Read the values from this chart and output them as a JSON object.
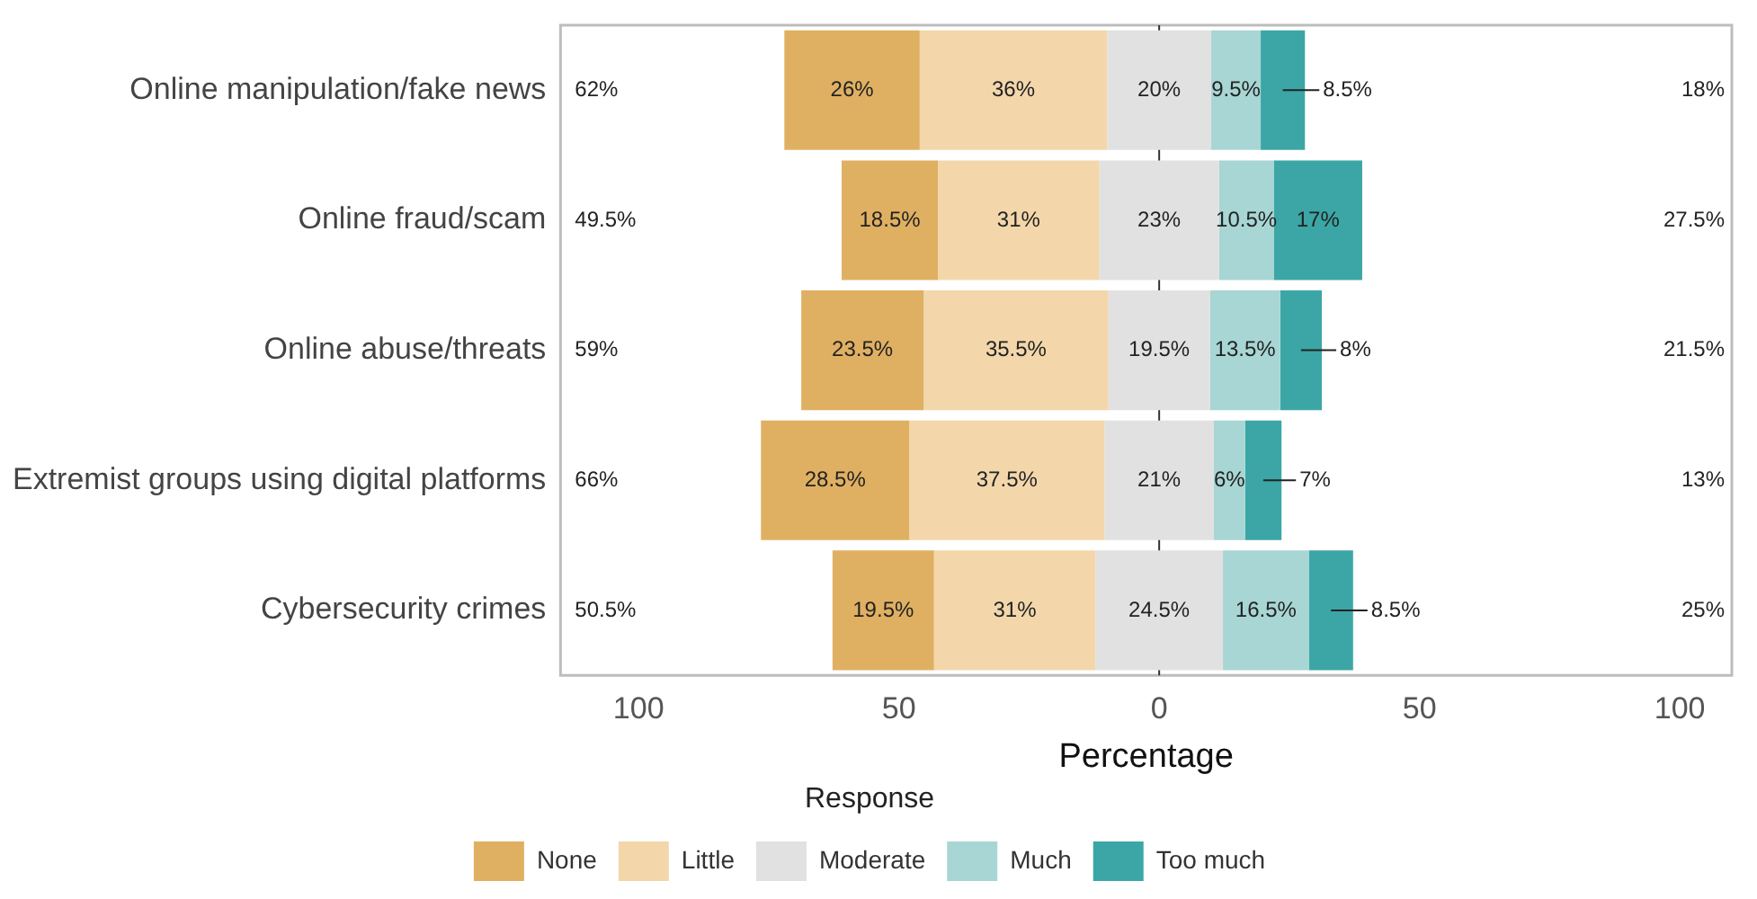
{
  "chart_data": {
    "type": "bar",
    "orientation": "horizontal",
    "xlabel": "Percentage",
    "legend_title": "Response",
    "legend": "bottom",
    "grid": false,
    "categories": [
      "Online manipulation/fake news",
      "Online fraud/scam",
      "Online abuse/threats",
      "Extremist groups using digital platforms",
      "Cybersecurity crimes"
    ],
    "xlim": [
      -115,
      110
    ],
    "xticks": [
      {
        "value": -100,
        "label": "100"
      },
      {
        "value": -50,
        "label": "50"
      },
      0,
      50,
      100
    ],
    "series": [
      {
        "name": "None",
        "color": "#e0b062",
        "values": [
          26,
          18.5,
          23.5,
          28.5,
          19.5
        ],
        "base": [
          -72,
          -61,
          -68.75,
          -76.5,
          -62.75
        ],
        "value_labels": [
          "26%",
          "18.5%",
          "23.5%",
          "28.5%",
          "19.5%"
        ]
      },
      {
        "name": "Little",
        "color": "#f3d7ab",
        "values": [
          36,
          31,
          35.5,
          37.5,
          31
        ],
        "base": [
          -46,
          -42.5,
          -45.25,
          -48,
          -43.25
        ],
        "value_labels": [
          "36%",
          "31%",
          "35.5%",
          "37.5%",
          "31%"
        ]
      },
      {
        "name": "Moderate",
        "color": "#e1e1e1",
        "values": [
          20,
          23,
          19.5,
          21,
          24.5
        ],
        "base": [
          -10,
          -11.5,
          -9.75,
          -10.5,
          -12.25
        ],
        "value_labels": [
          "20%",
          "23%",
          "19.5%",
          "21%",
          "24.5%"
        ]
      },
      {
        "name": "Much",
        "color": "#a7d6d4",
        "values": [
          9.5,
          10.5,
          13.5,
          6,
          16.5
        ],
        "base": [
          10,
          11.5,
          9.75,
          10.5,
          12.25
        ],
        "value_labels": [
          "9.5%",
          "10.5%",
          "13.5%",
          "6%",
          "16.5%"
        ]
      },
      {
        "name": "Too much",
        "color": "#3ca6a6",
        "values": [
          8.5,
          17,
          8,
          7,
          8.5
        ],
        "base": [
          19.5,
          22,
          23.25,
          16.5,
          28.75
        ],
        "value_labels": [
          "8.5%",
          "17%",
          "8%",
          "7%",
          "8.5%"
        ]
      }
    ],
    "ref_lines": [
      {
        "axis": "x",
        "value": 0,
        "color": "#333333"
      }
    ],
    "annotations": [
      "62%",
      "49.5%",
      "59%",
      "66%",
      "50.5%",
      "18%",
      "27.5%",
      "21.5%",
      "13%",
      "25%"
    ]
  }
}
